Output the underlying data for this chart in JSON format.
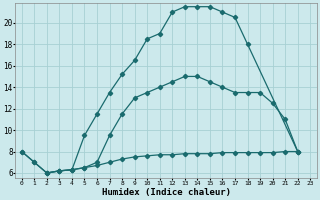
{
  "xlabel": "Humidex (Indice chaleur)",
  "bg_color": "#cce9ec",
  "grid_color": "#a8d0d4",
  "line_color": "#1a6b6e",
  "xlim": [
    -0.5,
    23.5
  ],
  "ylim": [
    5.5,
    21.8
  ],
  "xticks": [
    0,
    1,
    2,
    3,
    4,
    5,
    6,
    7,
    8,
    9,
    10,
    11,
    12,
    13,
    14,
    15,
    16,
    17,
    18,
    19,
    20,
    21,
    22,
    23
  ],
  "yticks": [
    6,
    8,
    10,
    12,
    14,
    16,
    18,
    20
  ],
  "line1_x": [
    0,
    1,
    2,
    3,
    4,
    5,
    6,
    7,
    8,
    9,
    10,
    11,
    12,
    13,
    14,
    15,
    16,
    17,
    18,
    22
  ],
  "line1_y": [
    8.0,
    7.0,
    6.0,
    6.2,
    6.3,
    9.5,
    11.5,
    13.5,
    15.2,
    16.5,
    18.5,
    19.0,
    21.0,
    21.5,
    21.5,
    21.5,
    21.0,
    20.5,
    18.0,
    8.0
  ],
  "line2_x": [
    0,
    1,
    2,
    3,
    4,
    5,
    6,
    7,
    8,
    9,
    10,
    11,
    12,
    13,
    14,
    15,
    16,
    17,
    18,
    19,
    20,
    21,
    22
  ],
  "line2_y": [
    8.0,
    7.0,
    6.0,
    6.2,
    6.3,
    6.5,
    7.0,
    9.5,
    11.5,
    13.0,
    13.5,
    14.0,
    14.5,
    15.0,
    15.0,
    14.5,
    14.0,
    13.5,
    13.5,
    13.5,
    12.5,
    11.0,
    8.0
  ],
  "line3_x": [
    2,
    3,
    4,
    5,
    6,
    7,
    8,
    9,
    10,
    11,
    12,
    13,
    14,
    15,
    16,
    17,
    18,
    19,
    20,
    21,
    22
  ],
  "line3_y": [
    6.0,
    6.2,
    6.3,
    6.5,
    6.7,
    7.0,
    7.3,
    7.5,
    7.6,
    7.7,
    7.7,
    7.8,
    7.8,
    7.8,
    7.9,
    7.9,
    7.9,
    7.9,
    7.9,
    8.0,
    8.0
  ]
}
